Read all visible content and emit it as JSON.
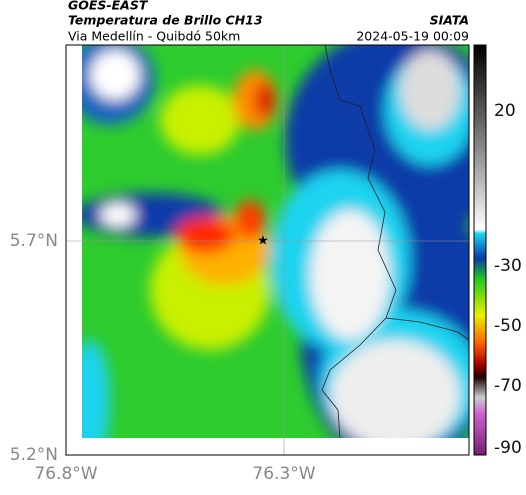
{
  "header": {
    "source": "GOES-EAST",
    "product": "Temperatura de Brillo CH13",
    "location": "Via Medellín - Quibdó 50km",
    "agency": "SIATA",
    "datetime": "2024-05-19 00:09"
  },
  "map": {
    "lat_ticks": [
      "5.7°N",
      "5.2°N"
    ],
    "lon_ticks": [
      "76.8°W",
      "76.3°W"
    ]
  },
  "colorbar": {
    "ticks": [
      "20",
      "-30",
      "-50",
      "-70",
      "-90"
    ]
  }
}
